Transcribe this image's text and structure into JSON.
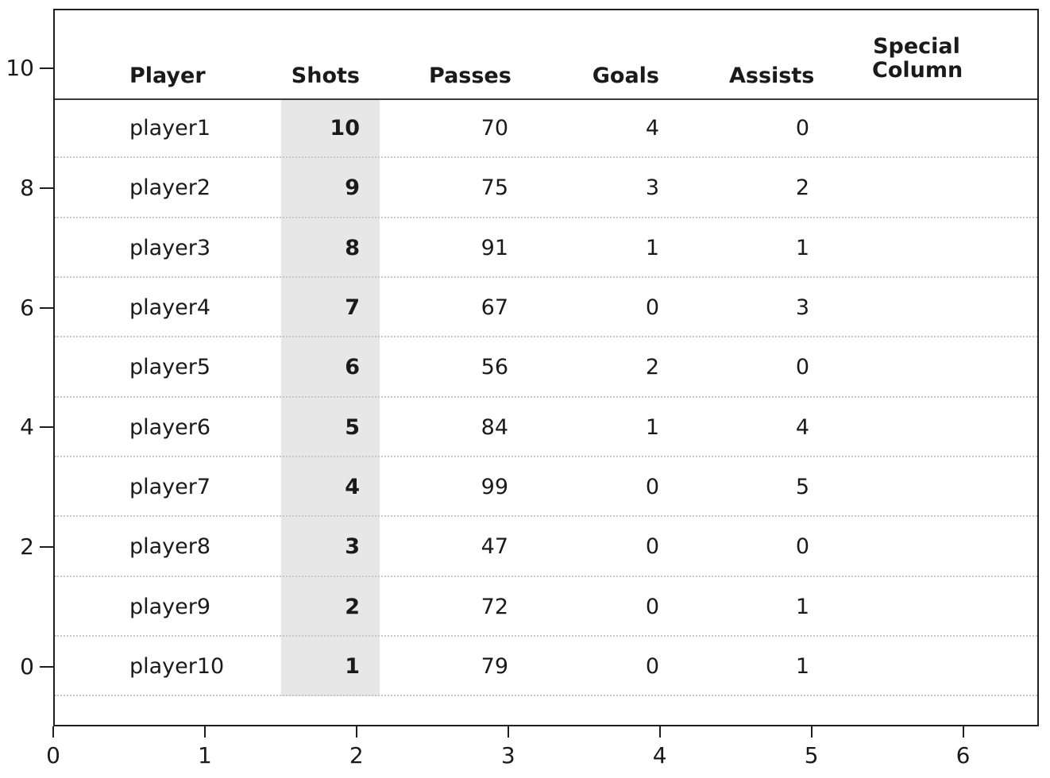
{
  "chart_data": {
    "type": "table",
    "title": "",
    "columns": [
      {
        "key": "player",
        "label": "Player",
        "align": "left"
      },
      {
        "key": "shots",
        "label": "Shots",
        "align": "right",
        "highlighted": true,
        "bold_values": true
      },
      {
        "key": "passes",
        "label": "Passes",
        "align": "right"
      },
      {
        "key": "goals",
        "label": "Goals",
        "align": "right"
      },
      {
        "key": "assists",
        "label": "Assists",
        "align": "right"
      },
      {
        "key": "special",
        "label": "Special Column",
        "label_lines": [
          "Special",
          "Column"
        ],
        "align": "center"
      }
    ],
    "rows": [
      {
        "player": "player1",
        "shots": "10",
        "passes": "70",
        "goals": "4",
        "assists": "0",
        "special": ""
      },
      {
        "player": "player2",
        "shots": "9",
        "passes": "75",
        "goals": "3",
        "assists": "2",
        "special": ""
      },
      {
        "player": "player3",
        "shots": "8",
        "passes": "91",
        "goals": "1",
        "assists": "1",
        "special": ""
      },
      {
        "player": "player4",
        "shots": "7",
        "passes": "67",
        "goals": "0",
        "assists": "3",
        "special": ""
      },
      {
        "player": "player5",
        "shots": "6",
        "passes": "56",
        "goals": "2",
        "assists": "0",
        "special": ""
      },
      {
        "player": "player6",
        "shots": "5",
        "passes": "84",
        "goals": "1",
        "assists": "4",
        "special": ""
      },
      {
        "player": "player7",
        "shots": "4",
        "passes": "99",
        "goals": "0",
        "assists": "5",
        "special": ""
      },
      {
        "player": "player8",
        "shots": "3",
        "passes": "47",
        "goals": "0",
        "assists": "0",
        "special": ""
      },
      {
        "player": "player9",
        "shots": "2",
        "passes": "72",
        "goals": "0",
        "assists": "1",
        "special": ""
      },
      {
        "player": "player10",
        "shots": "1",
        "passes": "79",
        "goals": "0",
        "assists": "1",
        "special": ""
      }
    ],
    "highlighted_column": "Shots",
    "axes": {
      "x_ticks": [
        "0",
        "1",
        "2",
        "3",
        "4",
        "5",
        "6"
      ],
      "y_ticks": [
        "10",
        "8",
        "6",
        "4",
        "2",
        "0"
      ],
      "xlim": [
        0,
        6.5
      ],
      "ylim": [
        -1,
        11
      ],
      "grid": "horizontal dotted row separators",
      "legend": "none"
    },
    "colors": {
      "background": "#ffffff",
      "text": "#1a1a1a",
      "highlight_band": "#e7e7e7",
      "row_separator": "#c6c6c6",
      "header_rule": "#3a3a3a",
      "spine": "#1f1f1f"
    }
  }
}
